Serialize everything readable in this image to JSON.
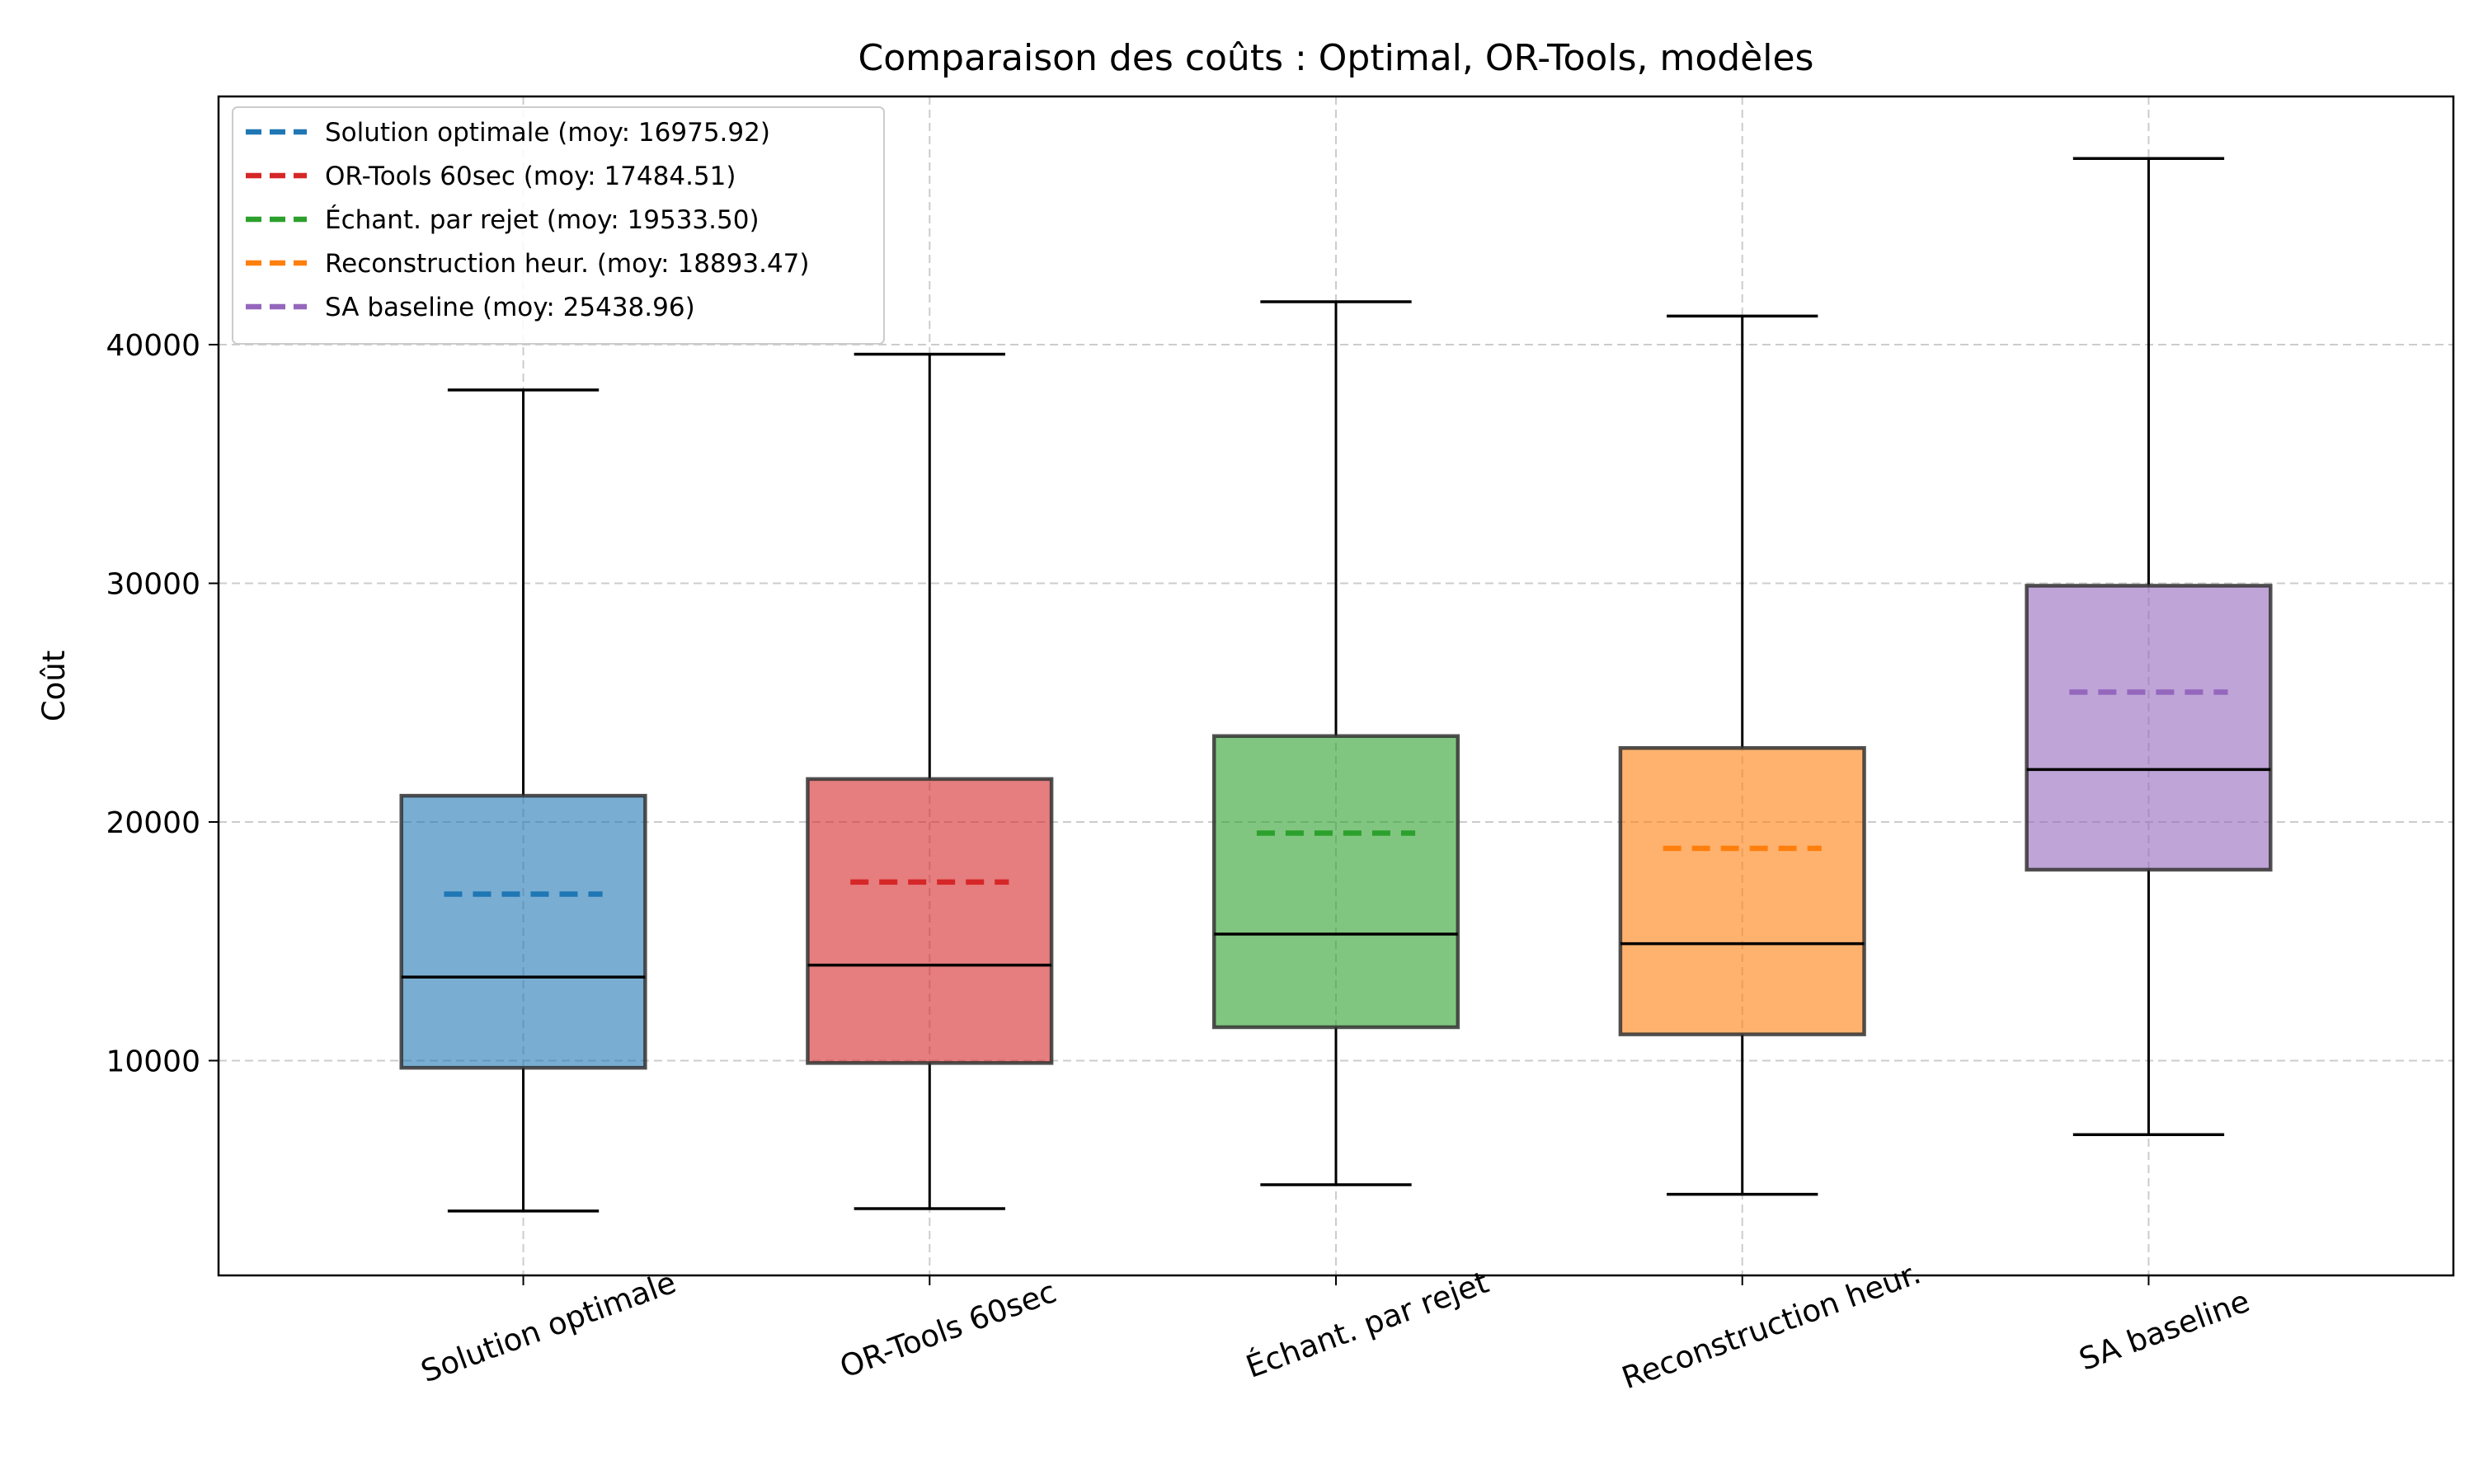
{
  "chart_data": {
    "type": "box",
    "title": "Comparaison des coûts : Optimal, OR-Tools, modèles",
    "xlabel": "",
    "ylabel": "Coût",
    "ylim": [
      1000,
      50400
    ],
    "yticks": [
      10000,
      20000,
      30000,
      40000
    ],
    "grid": true,
    "legend_position": "top-left",
    "categories": [
      "Solution optimale",
      "OR-Tools 60sec",
      "Échant. par rejet",
      "Reconstruction heur.",
      "SA baseline"
    ],
    "series": [
      {
        "name": "Solution optimale",
        "color": "#1f77b4",
        "whisker_low": 3700,
        "q1": 9700,
        "median": 13500,
        "q3": 21100,
        "whisker_high": 38100,
        "mean": 16975.92,
        "legend_label": "Solution optimale (moy: 16975.92)"
      },
      {
        "name": "OR-Tools 60sec",
        "color": "#d62728",
        "whisker_low": 3800,
        "q1": 9900,
        "median": 14000,
        "q3": 21800,
        "whisker_high": 39600,
        "mean": 17484.51,
        "legend_label": "OR-Tools 60sec (moy: 17484.51)"
      },
      {
        "name": "Échant. par rejet",
        "color": "#2ca02c",
        "whisker_low": 4800,
        "q1": 11400,
        "median": 15300,
        "q3": 23600,
        "whisker_high": 41800,
        "mean": 19533.5,
        "legend_label": "Échant. par rejet (moy: 19533.50)"
      },
      {
        "name": "Reconstruction heur.",
        "color": "#ff7f0e",
        "whisker_low": 4400,
        "q1": 11100,
        "median": 14900,
        "q3": 23100,
        "whisker_high": 41200,
        "mean": 18893.47,
        "legend_label": "Reconstruction heur. (moy: 18893.47)"
      },
      {
        "name": "SA baseline",
        "color": "#9467bd",
        "whisker_low": 6900,
        "q1": 18000,
        "median": 22200,
        "q3": 29900,
        "whisker_high": 47800,
        "mean": 25438.96,
        "legend_label": "SA baseline (moy: 25438.96)"
      }
    ]
  }
}
